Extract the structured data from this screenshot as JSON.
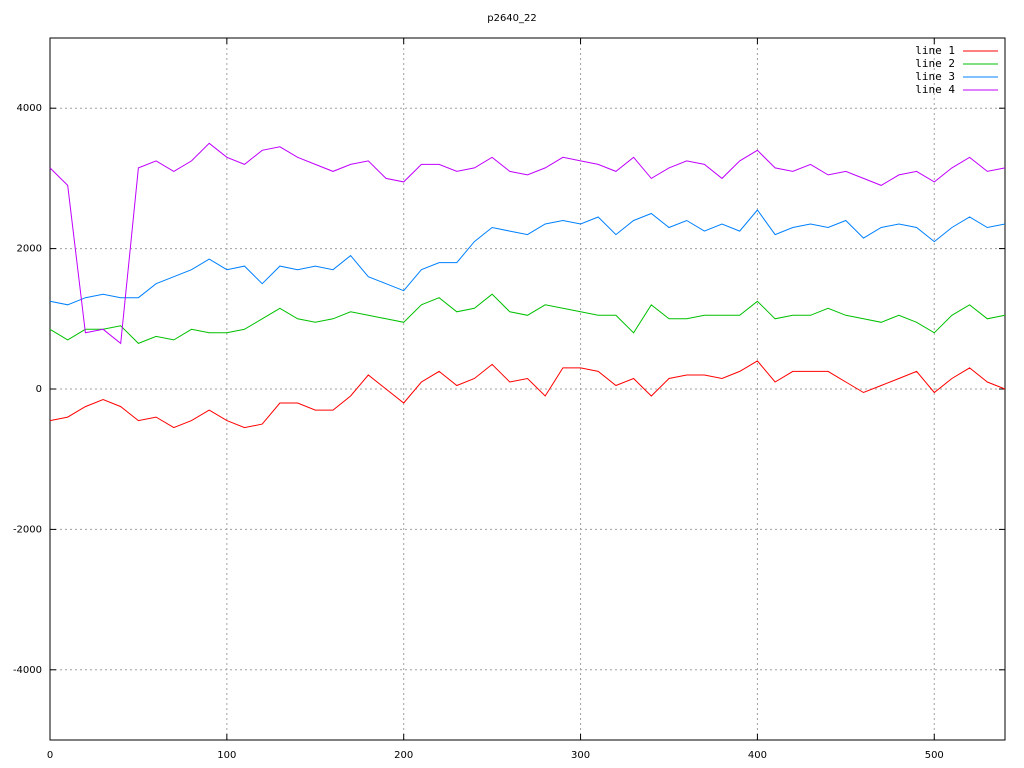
{
  "chart_data": {
    "type": "line",
    "title": "p2640_22",
    "x": [
      0,
      10,
      20,
      30,
      40,
      50,
      60,
      70,
      80,
      90,
      100,
      110,
      120,
      130,
      140,
      150,
      160,
      170,
      180,
      190,
      200,
      210,
      220,
      230,
      240,
      250,
      260,
      270,
      280,
      290,
      300,
      310,
      320,
      330,
      340,
      350,
      360,
      370,
      380,
      390,
      400,
      410,
      420,
      430,
      440,
      450,
      460,
      470,
      480,
      490,
      500,
      510,
      520,
      530,
      540
    ],
    "series": [
      {
        "name": "line 1",
        "color": "#ff0000",
        "values": [
          -450,
          -400,
          -250,
          -150,
          -250,
          -450,
          -400,
          -550,
          -450,
          -300,
          -450,
          -550,
          -500,
          -200,
          -200,
          -300,
          -300,
          -100,
          200,
          0,
          -200,
          100,
          250,
          50,
          150,
          350,
          100,
          150,
          -100,
          300,
          300,
          250,
          50,
          150,
          -100,
          150,
          200,
          200,
          150,
          250,
          400,
          100,
          250,
          250,
          250,
          100,
          -50,
          50,
          150,
          250,
          -50,
          150,
          300,
          100,
          0
        ]
      },
      {
        "name": "line 2",
        "color": "#00c000",
        "values": [
          850,
          700,
          850,
          850,
          900,
          650,
          750,
          700,
          850,
          800,
          800,
          850,
          1000,
          1150,
          1000,
          950,
          1000,
          1100,
          1050,
          1000,
          950,
          1200,
          1300,
          1100,
          1150,
          1350,
          1100,
          1050,
          1200,
          1150,
          1100,
          1050,
          1050,
          800,
          1200,
          1000,
          1000,
          1050,
          1050,
          1050,
          1250,
          1000,
          1050,
          1050,
          1150,
          1050,
          1000,
          950,
          1050,
          950,
          800,
          1050,
          1200,
          1000,
          1050
        ]
      },
      {
        "name": "line 3",
        "color": "#0080ff",
        "values": [
          1250,
          1200,
          1300,
          1350,
          1300,
          1300,
          1500,
          1600,
          1700,
          1850,
          1700,
          1750,
          1500,
          1750,
          1700,
          1750,
          1700,
          1900,
          1600,
          1500,
          1400,
          1700,
          1800,
          1800,
          2100,
          2300,
          2250,
          2200,
          2350,
          2400,
          2350,
          2450,
          2200,
          2400,
          2500,
          2300,
          2400,
          2250,
          2350,
          2250,
          2550,
          2200,
          2300,
          2350,
          2300,
          2400,
          2150,
          2300,
          2350,
          2300,
          2100,
          2300,
          2450,
          2300,
          2350
        ]
      },
      {
        "name": "line 4",
        "color": "#c000ff",
        "values": [
          3150,
          2900,
          800,
          850,
          650,
          3150,
          3250,
          3100,
          3250,
          3500,
          3300,
          3200,
          3400,
          3450,
          3300,
          3200,
          3100,
          3200,
          3250,
          3000,
          2950,
          3200,
          3200,
          3100,
          3150,
          3300,
          3100,
          3050,
          3150,
          3300,
          3250,
          3200,
          3100,
          3300,
          3000,
          3150,
          3250,
          3200,
          3000,
          3250,
          3400,
          3150,
          3100,
          3200,
          3050,
          3100,
          3000,
          2900,
          3050,
          3100,
          2950,
          3150,
          3300,
          3100,
          3150
        ]
      }
    ],
    "xlim": [
      0,
      540
    ],
    "ylim": [
      -5000,
      5000
    ],
    "xticks": [
      0,
      100,
      200,
      300,
      400,
      500
    ],
    "yticks": [
      -4000,
      -2000,
      0,
      2000,
      4000
    ],
    "grid": true,
    "legend": "upper right"
  }
}
